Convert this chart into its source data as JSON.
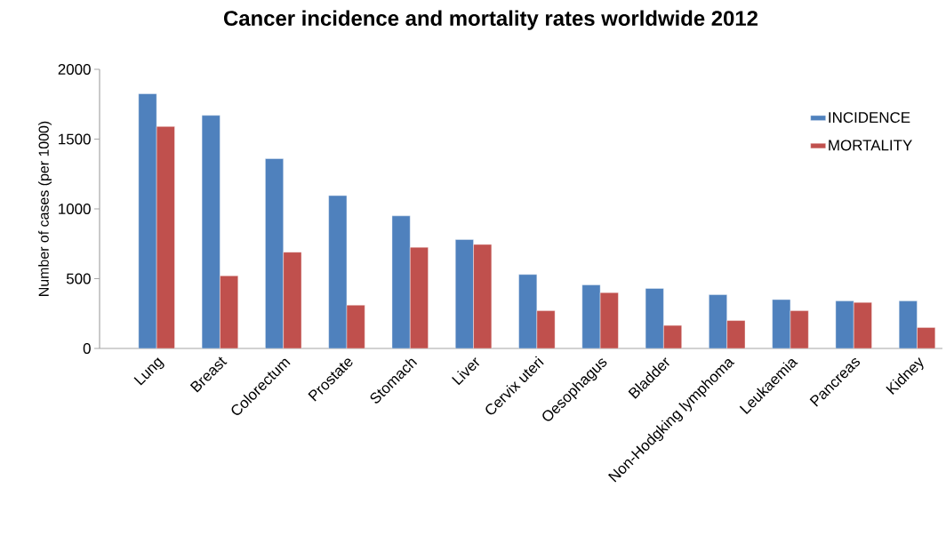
{
  "chart_data": {
    "type": "bar",
    "title": "Cancer incidence and mortality rates worldwide 2012",
    "ylabel": "Number of cases (per 1000)",
    "categories": [
      "Lung",
      "Breast",
      "Colorectum",
      "Prostate",
      "Stomach",
      "Liver",
      "Cervix uteri",
      "Oesophagus",
      "Bladder",
      "Non-Hodgking lymphoma",
      "Leukaemia",
      "Pancreas",
      "Kidney"
    ],
    "series": [
      {
        "name": "INCIDENCE",
        "color": "#4f81bd",
        "values": [
          1825,
          1670,
          1360,
          1095,
          950,
          780,
          530,
          455,
          430,
          385,
          350,
          340,
          340
        ]
      },
      {
        "name": "MORTALITY",
        "color": "#c0504d",
        "values": [
          1590,
          520,
          690,
          310,
          725,
          745,
          270,
          400,
          165,
          200,
          270,
          330,
          150
        ]
      }
    ],
    "ylim": [
      0,
      2000
    ],
    "yticks": [
      0,
      500,
      1000,
      1500,
      2000
    ],
    "grid": false,
    "legend": "top right"
  }
}
